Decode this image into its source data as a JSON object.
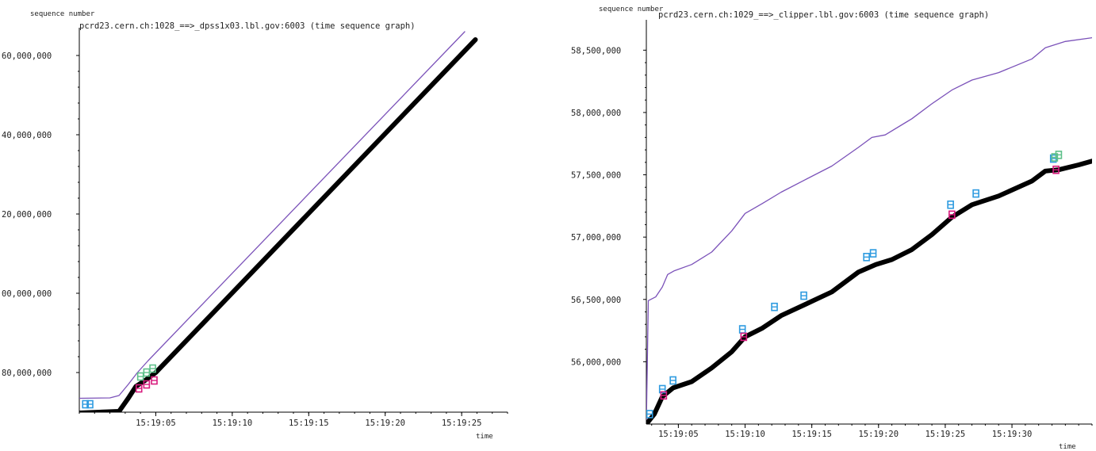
{
  "chart_data": [
    {
      "type": "line",
      "title": "pcrd23.cern.ch:1028_==>_dpss1x03.lbl.gov:6003 (time sequence graph)",
      "ylabel": "sequence number",
      "xlabel": "time",
      "yticks": [
        "60,000,000",
        "40,000,000",
        "20,000,000",
        "00,000,000",
        "80,000,000"
      ],
      "xticks": [
        "15:19:05",
        "15:19:10",
        "15:19:15",
        "15:19:20",
        "15:19:25"
      ],
      "xlim": [
        0,
        28
      ],
      "ylim": [
        70,
        165
      ],
      "ytick_values": [
        160,
        140,
        120,
        100,
        80
      ],
      "xtick_values": [
        5,
        10,
        15,
        20,
        25
      ],
      "series": [
        {
          "color": "#7b52b9",
          "width": 1.3,
          "points": [
            [
              0,
              73.5
            ],
            [
              2,
              73.6
            ],
            [
              2.6,
              74.2
            ],
            [
              3.2,
              77
            ],
            [
              3.8,
              80
            ],
            [
              4.5,
              83
            ],
            [
              25.2,
              166
            ]
          ]
        },
        {
          "color": "#000000",
          "width": 6,
          "points": [
            [
              0,
              69.8
            ],
            [
              2.6,
              70.2
            ],
            [
              3.2,
              73.5
            ],
            [
              3.7,
              76.5
            ],
            [
              4.3,
              78
            ],
            [
              5,
              80
            ],
            [
              25.9,
              164
            ]
          ]
        }
      ],
      "markers": [
        {
          "color": "#2e9be0",
          "points": [
            [
              0.4,
              72
            ],
            [
              0.7,
              72
            ]
          ]
        },
        {
          "color": "#5ec08a",
          "points": [
            [
              4,
              79
            ],
            [
              4.4,
              80
            ],
            [
              4.8,
              81
            ]
          ]
        },
        {
          "color": "#d81b7e",
          "points": [
            [
              3.9,
              76
            ],
            [
              4.4,
              77
            ],
            [
              4.9,
              78
            ]
          ]
        }
      ]
    },
    {
      "type": "line",
      "title": "pcrd23.cern.ch:1029_==>_clipper.lbl.gov:6003 (time sequence graph)",
      "ylabel": "sequence number",
      "xlabel": "time",
      "yticks": [
        "58,500,000",
        "58,000,000",
        "57,500,000",
        "57,000,000",
        "56,500,000",
        "56,000,000"
      ],
      "xticks": [
        "15:19:05",
        "15:19:10",
        "15:19:15",
        "15:19:20",
        "15:19:25",
        "15:19:30"
      ],
      "xlim": [
        2.6,
        36
      ],
      "ylim": [
        55.5,
        58.68
      ],
      "ytick_values": [
        58.5,
        58.0,
        57.5,
        57.0,
        56.5,
        56.0
      ],
      "xtick_values": [
        5,
        10,
        15,
        20,
        25,
        30
      ],
      "series": [
        {
          "color": "#7b52b9",
          "width": 1.3,
          "points": [
            [
              2.6,
              55.5
            ],
            [
              2.75,
              56.49
            ],
            [
              3.3,
              56.52
            ],
            [
              3.8,
              56.6
            ],
            [
              4.2,
              56.7
            ],
            [
              4.7,
              56.73
            ],
            [
              6,
              56.78
            ],
            [
              7.5,
              56.88
            ],
            [
              9,
              57.05
            ],
            [
              10,
              57.19
            ],
            [
              11.3,
              57.27
            ],
            [
              12.7,
              57.36
            ],
            [
              14.5,
              57.46
            ],
            [
              16.5,
              57.57
            ],
            [
              18.5,
              57.72
            ],
            [
              19.5,
              57.8
            ],
            [
              20.5,
              57.82
            ],
            [
              22.5,
              57.95
            ],
            [
              24,
              58.07
            ],
            [
              25.5,
              58.18
            ],
            [
              27,
              58.26
            ],
            [
              29,
              58.32
            ],
            [
              31.5,
              58.43
            ],
            [
              32.5,
              58.52
            ],
            [
              34,
              58.57
            ],
            [
              36,
              58.6
            ]
          ]
        },
        {
          "color": "#000000",
          "width": 6,
          "points": [
            [
              2.6,
              55.5
            ],
            [
              3.2,
              55.58
            ],
            [
              3.8,
              55.72
            ],
            [
              4.6,
              55.79
            ],
            [
              6,
              55.84
            ],
            [
              7.5,
              55.95
            ],
            [
              9,
              56.08
            ],
            [
              10,
              56.2
            ],
            [
              11.3,
              56.27
            ],
            [
              12.7,
              56.37
            ],
            [
              14.5,
              56.46
            ],
            [
              16.5,
              56.56
            ],
            [
              18.5,
              56.72
            ],
            [
              19.8,
              56.78
            ],
            [
              21,
              56.82
            ],
            [
              22.5,
              56.9
            ],
            [
              24,
              57.02
            ],
            [
              25.5,
              57.16
            ],
            [
              27,
              57.26
            ],
            [
              29,
              57.33
            ],
            [
              31.5,
              57.45
            ],
            [
              32.5,
              57.53
            ],
            [
              33.5,
              57.54
            ],
            [
              35,
              57.58
            ],
            [
              36,
              57.61
            ]
          ]
        }
      ],
      "markers": [
        {
          "color": "#2e9be0",
          "points": [
            [
              2.85,
              55.58
            ],
            [
              3.8,
              55.78
            ],
            [
              4.6,
              55.85
            ],
            [
              9.8,
              56.26
            ],
            [
              12.2,
              56.44
            ],
            [
              14.4,
              56.53
            ],
            [
              19.1,
              56.84
            ],
            [
              19.6,
              56.87
            ],
            [
              25.4,
              57.26
            ],
            [
              27.3,
              57.35
            ],
            [
              33.1,
              57.63
            ]
          ]
        },
        {
          "color": "#5ec08a",
          "points": [
            [
              33.2,
              57.64
            ],
            [
              33.5,
              57.66
            ]
          ]
        },
        {
          "color": "#d81b7e",
          "points": [
            [
              3.9,
              55.73
            ],
            [
              9.9,
              56.2
            ],
            [
              25.5,
              57.18
            ],
            [
              33.3,
              57.54
            ]
          ]
        }
      ]
    }
  ]
}
